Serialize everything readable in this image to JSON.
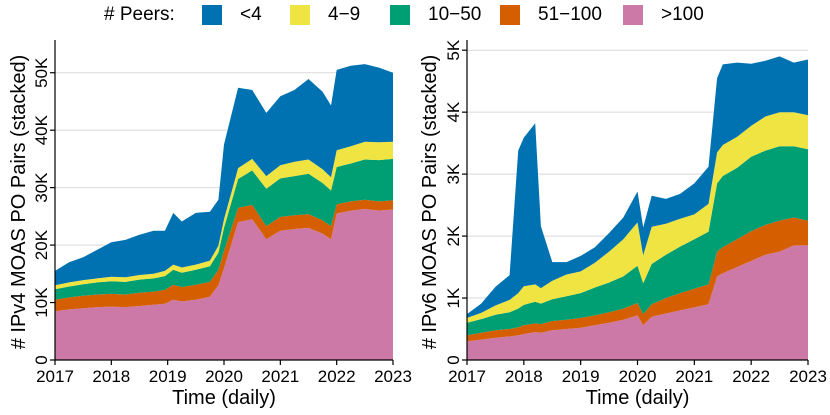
{
  "legend": {
    "title": "# Peers:",
    "items": [
      {
        "label": "<4",
        "color": "#0072B2"
      },
      {
        "label": "4−9",
        "color": "#F0E442"
      },
      {
        "label": "10−50",
        "color": "#009E73"
      },
      {
        "label": "51−100",
        "color": "#D55E00"
      },
      {
        "label": ">100",
        "color": "#CC79A7"
      }
    ]
  },
  "chart_data": [
    {
      "type": "area",
      "title": "",
      "xlabel": "Time (daily)",
      "ylabel": "# IPv4 MOAS PO Pairs (stacked)",
      "xlim": [
        2017,
        2023
      ],
      "ylim": [
        0,
        55000
      ],
      "x_ticks": [
        2017,
        2018,
        2019,
        2020,
        2021,
        2022,
        2023
      ],
      "x_tick_labels": [
        "2017",
        "2018",
        "2019",
        "2020",
        "2021",
        "2022",
        "2023"
      ],
      "y_ticks": [
        0,
        10000,
        20000,
        30000,
        40000,
        50000
      ],
      "y_tick_labels": [
        "0",
        "10K",
        "20K",
        "30K",
        "40K",
        "50K"
      ],
      "grid": true,
      "x": [
        2017.0,
        2017.25,
        2017.5,
        2017.75,
        2018.0,
        2018.25,
        2018.5,
        2018.75,
        2018.95,
        2019.1,
        2019.25,
        2019.5,
        2019.75,
        2019.9,
        2020.0,
        2020.25,
        2020.5,
        2020.75,
        2021.0,
        2021.25,
        2021.5,
        2021.75,
        2021.9,
        2022.0,
        2022.25,
        2022.5,
        2022.75,
        2023.0
      ],
      "series": [
        {
          "name": ">100",
          "values": [
            8500,
            8800,
            9000,
            9200,
            9300,
            9200,
            9400,
            9600,
            9800,
            10500,
            10200,
            10500,
            11000,
            13000,
            16000,
            24000,
            24500,
            21000,
            22500,
            22800,
            23000,
            22000,
            21000,
            25500,
            26000,
            26300,
            26000,
            26200
          ]
        },
        {
          "name": "51−100",
          "values": [
            2000,
            2100,
            2200,
            2200,
            2200,
            2200,
            2300,
            2300,
            2400,
            2600,
            2500,
            2600,
            2600,
            2700,
            3000,
            2500,
            2500,
            2300,
            2400,
            2400,
            2400,
            2300,
            2300,
            1600,
            1600,
            1600,
            1600,
            1600
          ]
        },
        {
          "name": "10−50",
          "values": [
            1800,
            1900,
            2000,
            2100,
            2200,
            2200,
            2300,
            2300,
            2400,
            2600,
            2500,
            2600,
            2700,
            3000,
            4000,
            5000,
            6000,
            6500,
            6700,
            6800,
            7000,
            6500,
            6200,
            6500,
            6600,
            7000,
            7200,
            7200
          ]
        },
        {
          "name": "4−9",
          "values": [
            700,
            700,
            700,
            700,
            800,
            800,
            800,
            800,
            900,
            900,
            900,
            900,
            1000,
            1200,
            1500,
            1900,
            2000,
            2200,
            2300,
            2500,
            2500,
            2400,
            2300,
            2900,
            3000,
            3100,
            3100,
            3000
          ]
        },
        {
          "name": "<4",
          "values": [
            2500,
            3500,
            4000,
            5000,
            6000,
            6500,
            7000,
            7500,
            7000,
            9000,
            8000,
            9000,
            8500,
            8000,
            13000,
            14000,
            12000,
            11000,
            12000,
            12500,
            14000,
            13500,
            12500,
            14000,
            14000,
            13500,
            13000,
            12000
          ]
        }
      ]
    },
    {
      "type": "area",
      "title": "",
      "xlabel": "Time (daily)",
      "ylabel": "# IPv6 MOAS PO Pairs (stacked)",
      "xlim": [
        2017,
        2023
      ],
      "ylim": [
        0,
        5100
      ],
      "x_ticks": [
        2017,
        2018,
        2019,
        2020,
        2021,
        2022,
        2023
      ],
      "x_tick_labels": [
        "2017",
        "2018",
        "2019",
        "2020",
        "2021",
        "2022",
        "2023"
      ],
      "y_ticks": [
        0,
        1000,
        2000,
        3000,
        4000,
        5000
      ],
      "y_tick_labels": [
        "0",
        "1K",
        "2K",
        "3K",
        "4K",
        "5K"
      ],
      "grid": true,
      "x": [
        2017.0,
        2017.25,
        2017.5,
        2017.75,
        2017.9,
        2018.0,
        2018.2,
        2018.3,
        2018.5,
        2018.75,
        2019.0,
        2019.25,
        2019.5,
        2019.75,
        2020.0,
        2020.1,
        2020.25,
        2020.5,
        2020.75,
        2021.0,
        2021.25,
        2021.4,
        2021.5,
        2021.75,
        2022.0,
        2022.25,
        2022.5,
        2022.75,
        2023.0
      ],
      "series": [
        {
          "name": ">100",
          "values": [
            300,
            330,
            360,
            380,
            400,
            420,
            450,
            440,
            480,
            500,
            520,
            560,
            600,
            650,
            720,
            560,
            700,
            750,
            800,
            850,
            900,
            1350,
            1400,
            1500,
            1600,
            1700,
            1750,
            1850,
            1850
          ]
        },
        {
          "name": "51−100",
          "values": [
            100,
            110,
            120,
            120,
            130,
            140,
            140,
            140,
            150,
            150,
            160,
            160,
            170,
            180,
            200,
            180,
            200,
            250,
            280,
            300,
            320,
            400,
            420,
            450,
            480,
            480,
            500,
            450,
            400
          ]
        },
        {
          "name": "10−50",
          "values": [
            200,
            220,
            250,
            270,
            300,
            330,
            350,
            330,
            350,
            380,
            400,
            450,
            480,
            520,
            600,
            500,
            650,
            700,
            750,
            800,
            850,
            1100,
            1150,
            1150,
            1200,
            1200,
            1200,
            1150,
            1150
          ]
        },
        {
          "name": "4−9",
          "values": [
            80,
            100,
            150,
            200,
            250,
            300,
            280,
            250,
            300,
            350,
            350,
            400,
            500,
            600,
            700,
            450,
            600,
            500,
            450,
            400,
            450,
            500,
            500,
            500,
            500,
            550,
            550,
            550,
            550
          ]
        },
        {
          "name": "<4",
          "values": [
            60,
            150,
            300,
            400,
            2300,
            2400,
            2600,
            1000,
            300,
            200,
            250,
            250,
            300,
            350,
            500,
            450,
            500,
            400,
            400,
            500,
            600,
            1200,
            1300,
            1200,
            1000,
            900,
            900,
            800,
            900
          ]
        }
      ]
    }
  ]
}
